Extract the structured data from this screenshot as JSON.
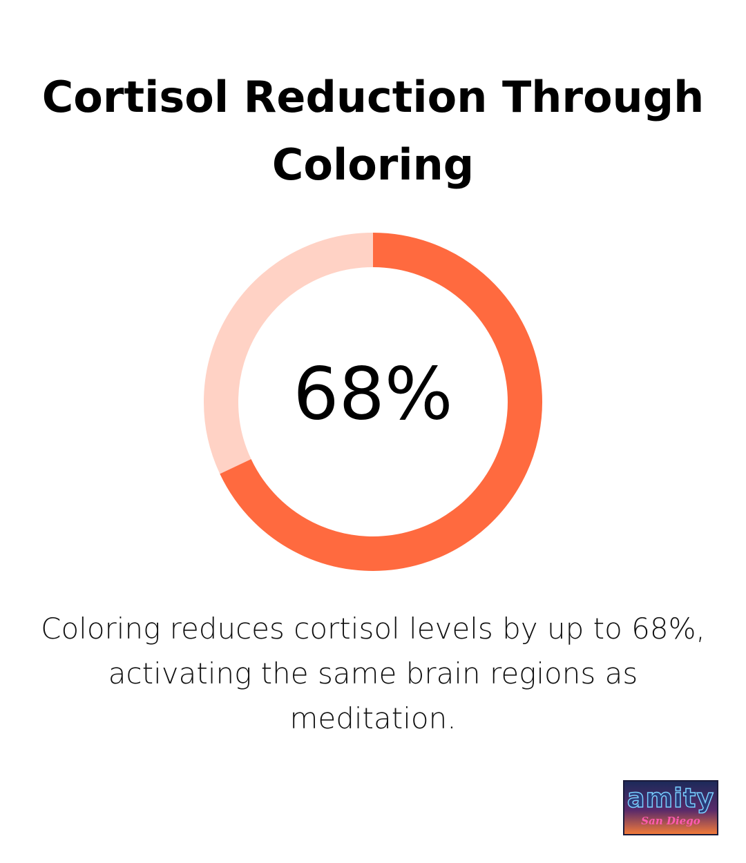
{
  "chart_data": {
    "type": "donut",
    "title": "Cortisol Reduction Through Coloring",
    "values": [
      68,
      32
    ],
    "value_labels": [
      "68%",
      null
    ],
    "colors": [
      "#ff6a3f",
      "#ffd2c5"
    ],
    "caption": "Coloring reduces cortisol levels by up to 68%, activating the same brain regions as meditation."
  },
  "logo": {
    "text": "amity",
    "subtext": "San Diego"
  }
}
